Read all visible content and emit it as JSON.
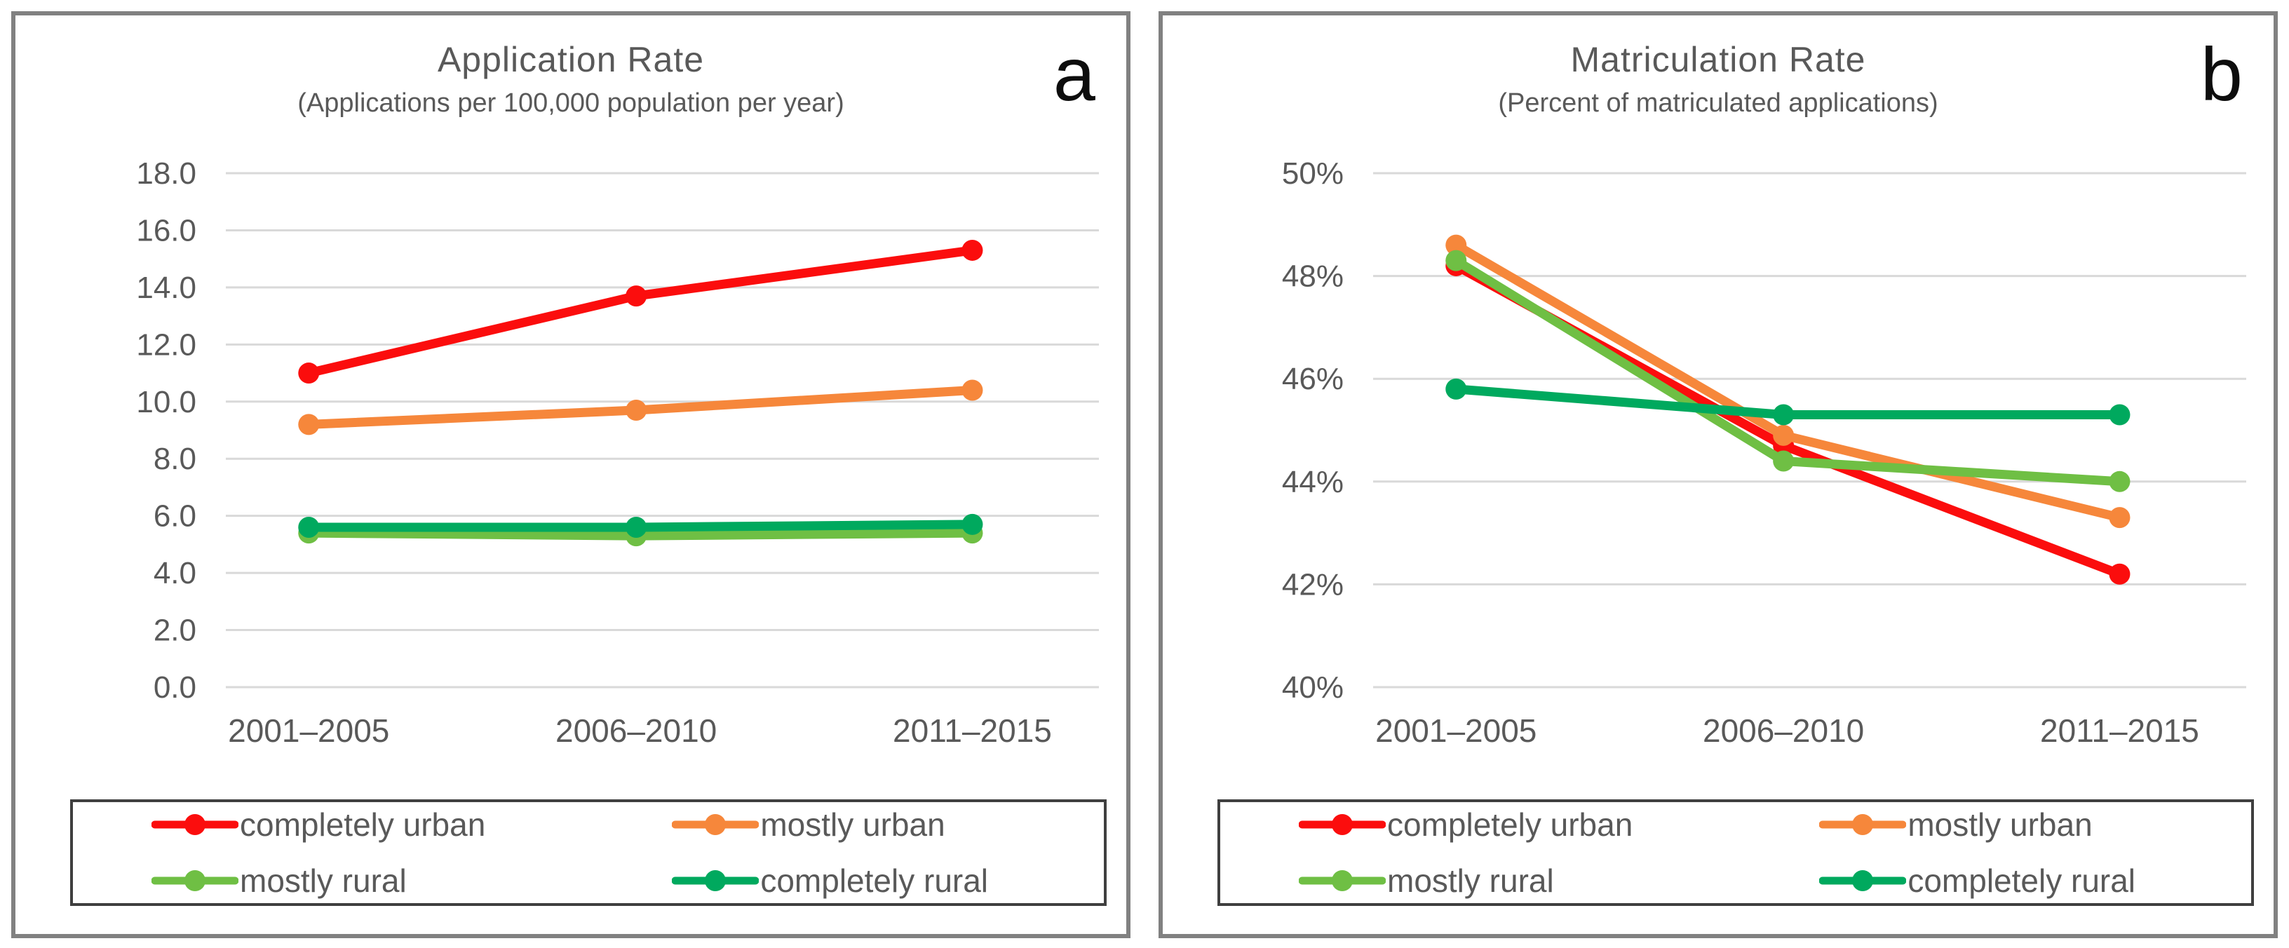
{
  "figure": {
    "background_color": "#ffffff",
    "panel_border_color": "#818181",
    "legend_border_color": "#3f3f3f",
    "gridline_color": "#d9d9d9",
    "axis_text_color": "#595959",
    "corner_label_color": "#0d0d0d"
  },
  "chart_data": [
    {
      "type": "line",
      "panel_letter": "a",
      "title": "Application Rate",
      "subtitle": "(Applications per 100,000 population per year)",
      "categories": [
        "2001–2005",
        "2006–2010",
        "2011–2015"
      ],
      "ylim": [
        0,
        18
      ],
      "ytick_labels": [
        "18.0",
        "16.0",
        "14.0",
        "12.0",
        "10.0",
        "8.0",
        "6.0",
        "4.0",
        "2.0",
        "0.0"
      ],
      "grid": true,
      "legend_position": "bottom-boxed",
      "series": [
        {
          "name": "completely urban",
          "color": "#fb0d0d",
          "values": [
            11.0,
            13.7,
            15.3
          ]
        },
        {
          "name": "mostly urban",
          "color": "#f6873b",
          "values": [
            9.2,
            9.7,
            10.4
          ]
        },
        {
          "name": "mostly rural",
          "color": "#6fbf44",
          "values": [
            5.4,
            5.3,
            5.4
          ]
        },
        {
          "name": "completely rural",
          "color": "#00a95e",
          "values": [
            5.6,
            5.6,
            5.7
          ]
        }
      ]
    },
    {
      "type": "line",
      "panel_letter": "b",
      "title": "Matriculation Rate",
      "subtitle": "(Percent of matriculated applications)",
      "categories": [
        "2001–2005",
        "2006–2010",
        "2011–2015"
      ],
      "ylim": [
        40,
        50
      ],
      "ytick_labels": [
        "50%",
        "48%",
        "46%",
        "44%",
        "42%",
        "40%"
      ],
      "grid": true,
      "legend_position": "bottom-boxed",
      "series": [
        {
          "name": "completely urban",
          "color": "#fb0d0d",
          "values": [
            48.2,
            44.7,
            42.2
          ]
        },
        {
          "name": "mostly urban",
          "color": "#f6873b",
          "values": [
            48.6,
            44.9,
            43.3
          ]
        },
        {
          "name": "mostly rural",
          "color": "#6fbf44",
          "values": [
            48.3,
            44.4,
            44.0
          ]
        },
        {
          "name": "completely rural",
          "color": "#00a95e",
          "values": [
            45.8,
            45.3,
            45.3
          ]
        }
      ]
    }
  ]
}
